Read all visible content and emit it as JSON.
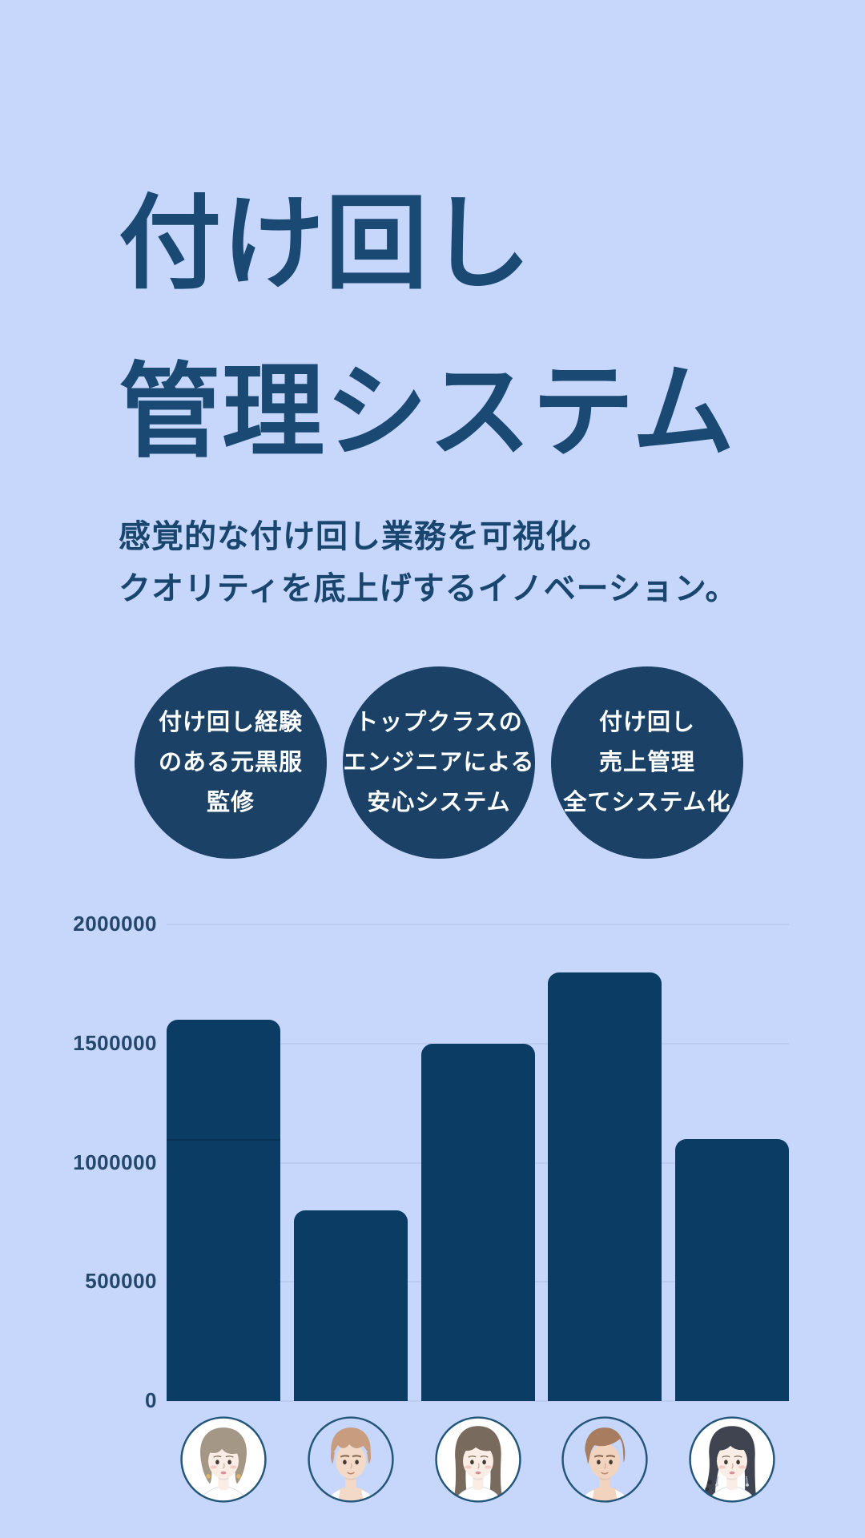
{
  "page": {
    "background_color": "#C7D7FB",
    "ink_color": "#1A4A74",
    "language": "ja"
  },
  "hero": {
    "title_lines": [
      "付け回し",
      "管理システム"
    ],
    "subtitle_lines": [
      "感覚的な付け回し業務を可視化。",
      "クオリティを底上げするイノベーション。"
    ]
  },
  "badges": {
    "circle_color": "#1B4166",
    "text_color": "#FFFFFF",
    "items": [
      {
        "lines": [
          "付け回し経験",
          "のある元黒服",
          "監修"
        ]
      },
      {
        "lines": [
          "トップクラスの",
          "エンジニアによる",
          "安心システム"
        ]
      },
      {
        "lines": [
          "付け回し",
          "売上管理",
          "全てシステム化"
        ]
      }
    ]
  },
  "chart_data": {
    "type": "bar",
    "title": "",
    "xlabel": "",
    "ylabel": "",
    "ylim": [
      0,
      2000000
    ],
    "y_ticks": [
      0,
      500000,
      1000000,
      1500000,
      2000000
    ],
    "y_tick_labels": [
      "0",
      "500000",
      "1000000",
      "1500000",
      "2000000"
    ],
    "grid": "horizontal",
    "legend": "none",
    "categories": [
      "staff-1",
      "staff-2",
      "staff-3",
      "staff-4",
      "staff-5"
    ],
    "category_labels_type": "avatar-illustrations (no text)",
    "values": [
      1600000,
      800000,
      1500000,
      1800000,
      1100000
    ],
    "bar1_stacked_segments": [
      1100000,
      500000
    ],
    "bar_color": "#0A3C64",
    "gridline_color": "#BCCBEE",
    "tick_label_color": "#23486C"
  },
  "avatars": [
    {
      "icon": "avatar-woman-short-bob-icon",
      "style": "bob",
      "hair": "#A49786",
      "skin": "#F9EDE6",
      "circle_fill": "#FFFFFF"
    },
    {
      "icon": "avatar-man-light-brown-hair-icon",
      "style": "short",
      "hair": "#C79C7F",
      "skin": "#F2D9C8",
      "circle_fill": "none"
    },
    {
      "icon": "avatar-woman-long-brown-hair-icon",
      "style": "long",
      "hair": "#796A5E",
      "skin": "#F9EDE6",
      "circle_fill": "#FFFFFF"
    },
    {
      "icon": "avatar-man-swept-brown-hair-icon",
      "style": "swept",
      "hair": "#A87C5F",
      "skin": "#F2D3BE",
      "circle_fill": "none"
    },
    {
      "icon": "avatar-woman-black-ponytail-icon",
      "style": "ponytail",
      "hair": "#3F4450",
      "skin": "#F9EDE6",
      "circle_fill": "#FFFFFF"
    }
  ],
  "avatar_ring_color": "#24567A"
}
